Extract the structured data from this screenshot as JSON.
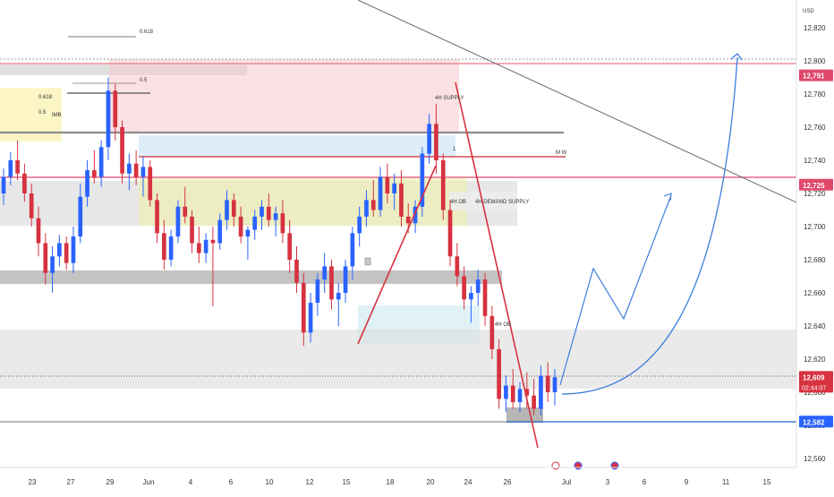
{
  "chart_data": {
    "type": "candlestick",
    "currency": "USD",
    "y_range": [
      12555,
      12830
    ],
    "y_ticks": [
      12560,
      12580,
      12600,
      12620,
      12640,
      12660,
      12680,
      12700,
      12720,
      12740,
      12760,
      12780,
      12800,
      12820
    ],
    "x_labels": [
      "23",
      "27",
      "29",
      "Jun",
      "4",
      "6",
      "10",
      "12",
      "15",
      "18",
      "20",
      "24",
      "26",
      "Jul",
      "3",
      "6",
      "9",
      "11",
      "15"
    ],
    "price_badges": {
      "top_level": "12,791",
      "upper_mid_level": "12,725",
      "last_price": "12,609",
      "countdown": "02:44:07",
      "support_level": "12,582"
    },
    "annotations": {
      "fib_618": "0.618",
      "fib_5": "0.5",
      "fib_618_small": "0.618",
      "fib_5_small": "0.5",
      "imb_left": "IMB",
      "supply_4h": "4H SUPPLY",
      "demand_4h": "4H DEMAND SUPPLY",
      "ob_4h": "4H OB",
      "ob_4h_low": "4H OB",
      "mw": "M W",
      "digit_1": "1"
    },
    "candles": [
      [
        12720,
        12735,
        12713,
        12730
      ],
      [
        12730,
        12745,
        12725,
        12740
      ],
      [
        12740,
        12752,
        12728,
        12732
      ],
      [
        12732,
        12738,
        12715,
        12720
      ],
      [
        12720,
        12726,
        12700,
        12705
      ],
      [
        12705,
        12712,
        12682,
        12690
      ],
      [
        12690,
        12696,
        12665,
        12672
      ],
      [
        12672,
        12688,
        12660,
        12682
      ],
      [
        12682,
        12695,
        12676,
        12690
      ],
      [
        12690,
        12694,
        12674,
        12678
      ],
      [
        12678,
        12700,
        12672,
        12694
      ],
      [
        12694,
        12726,
        12690,
        12718
      ],
      [
        12718,
        12740,
        12712,
        12734
      ],
      [
        12734,
        12746,
        12726,
        12730
      ],
      [
        12730,
        12752,
        12724,
        12748
      ],
      [
        12748,
        12790,
        12740,
        12782
      ],
      [
        12782,
        12786,
        12752,
        12760
      ],
      [
        12760,
        12764,
        12726,
        12732
      ],
      [
        12732,
        12744,
        12722,
        12738
      ],
      [
        12738,
        12746,
        12725,
        12730
      ],
      [
        12730,
        12742,
        12718,
        12736
      ],
      [
        12736,
        12740,
        12712,
        12716
      ],
      [
        12716,
        12720,
        12690,
        12696
      ],
      [
        12696,
        12704,
        12674,
        12680
      ],
      [
        12680,
        12698,
        12676,
        12694
      ],
      [
        12694,
        12716,
        12690,
        12712
      ],
      [
        12712,
        12724,
        12702,
        12706
      ],
      [
        12706,
        12710,
        12684,
        12690
      ],
      [
        12690,
        12700,
        12678,
        12684
      ],
      [
        12684,
        12696,
        12678,
        12692
      ],
      [
        12692,
        12700,
        12652,
        12690
      ],
      [
        12690,
        12708,
        12686,
        12704
      ],
      [
        12704,
        12722,
        12698,
        12716
      ],
      [
        12716,
        12720,
        12700,
        12706
      ],
      [
        12706,
        12712,
        12690,
        12694
      ],
      [
        12694,
        12700,
        12680,
        12698
      ],
      [
        12698,
        12710,
        12692,
        12706
      ],
      [
        12706,
        12716,
        12698,
        12712
      ],
      [
        12712,
        12720,
        12700,
        12704
      ],
      [
        12704,
        12712,
        12694,
        12708
      ],
      [
        12708,
        12716,
        12690,
        12696
      ],
      [
        12696,
        12704,
        12672,
        12680
      ],
      [
        12680,
        12688,
        12660,
        12666
      ],
      [
        12666,
        12672,
        12628,
        12636
      ],
      [
        12636,
        12660,
        12630,
        12654
      ],
      [
        12654,
        12672,
        12646,
        12668
      ],
      [
        12668,
        12684,
        12660,
        12676
      ],
      [
        12676,
        12680,
        12650,
        12656
      ],
      [
        12656,
        12666,
        12640,
        12660
      ],
      [
        12660,
        12680,
        12654,
        12676
      ],
      [
        12676,
        12700,
        12668,
        12696
      ],
      [
        12696,
        12712,
        12688,
        12706
      ],
      [
        12706,
        12722,
        12700,
        12716
      ],
      [
        12716,
        12728,
        12706,
        12710
      ],
      [
        12710,
        12736,
        12706,
        12730
      ],
      [
        12730,
        12738,
        12714,
        12720
      ],
      [
        12720,
        12732,
        12710,
        12726
      ],
      [
        12726,
        12734,
        12700,
        12706
      ],
      [
        12706,
        12714,
        12696,
        12702
      ],
      [
        12702,
        12716,
        12696,
        12712
      ],
      [
        12712,
        12748,
        12706,
        12744
      ],
      [
        12744,
        12768,
        12738,
        12762
      ],
      [
        12762,
        12774,
        12732,
        12740
      ],
      [
        12740,
        12744,
        12704,
        12710
      ],
      [
        12710,
        12716,
        12676,
        12682
      ],
      [
        12682,
        12690,
        12664,
        12670
      ],
      [
        12670,
        12676,
        12650,
        12656
      ],
      [
        12656,
        12664,
        12642,
        12660
      ],
      [
        12660,
        12674,
        12652,
        12668
      ],
      [
        12668,
        12672,
        12640,
        12646
      ],
      [
        12646,
        12652,
        12620,
        12626
      ],
      [
        12626,
        12632,
        12590,
        12596
      ],
      [
        12596,
        12610,
        12588,
        12604
      ],
      [
        12604,
        12614,
        12590,
        12594
      ],
      [
        12594,
        12606,
        12588,
        12602
      ],
      [
        12602,
        12612,
        12590,
        12598
      ],
      [
        12598,
        12608,
        12586,
        12590
      ],
      [
        12590,
        12616,
        12586,
        12610
      ],
      [
        12610,
        12618,
        12594,
        12600
      ],
      [
        12600,
        12614,
        12592,
        12609
      ]
    ]
  }
}
